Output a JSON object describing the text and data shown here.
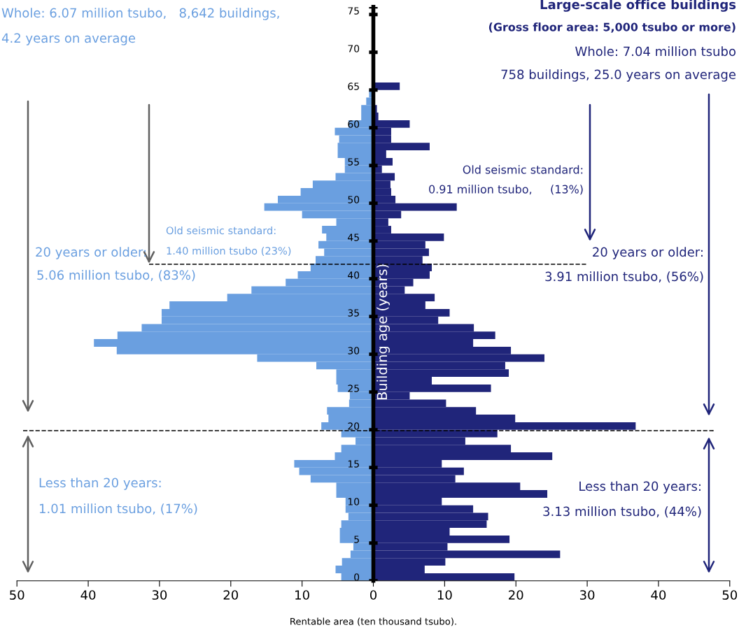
{
  "chart_data": {
    "type": "bar",
    "orientation": "horizontal",
    "stacked": true,
    "xlabel": "Rentable area (ten thousand tsubo).",
    "ylabel": "Building age (years)",
    "categories": [
      "75",
      null,
      null,
      null,
      null,
      "70",
      null,
      null,
      null,
      null,
      "65",
      null,
      null,
      null,
      null,
      "60",
      null,
      null,
      null,
      null,
      "55",
      null,
      null,
      null,
      null,
      "50",
      null,
      null,
      null,
      null,
      "45",
      null,
      null,
      null,
      null,
      "40",
      null,
      null,
      null,
      null,
      "35",
      null,
      null,
      null,
      null,
      "30",
      null,
      null,
      null,
      null,
      "25",
      null,
      null,
      null,
      null,
      "20",
      null,
      null,
      null,
      null,
      "15",
      null,
      null,
      null,
      null,
      "10",
      null,
      null,
      null,
      null,
      "5",
      null,
      null,
      null,
      null,
      "0"
    ],
    "series": [
      {
        "color": "#6a9fe0",
        "values": [
          null,
          null,
          null,
          null,
          null,
          null,
          null,
          null,
          null,
          null,
          0,
          -0.6,
          -1.0,
          -1.7,
          -1.7,
          -3.5,
          -5.4,
          -4.8,
          -5.0,
          -5.0,
          -4.0,
          -4.0,
          -5.3,
          -8.5,
          -10.2,
          -13.4,
          -15.3,
          -10.0,
          -5.2,
          -7.2,
          -6.6,
          -7.7,
          -6.9,
          -8.1,
          -8.8,
          -10.6,
          -12.3,
          -17.1,
          -20.5,
          -28.6,
          -29.7,
          -29.7,
          -32.5,
          -35.9,
          -39.2,
          -36.0,
          -16.3,
          -8.0,
          -5.2,
          -5.2,
          -5.0,
          -3.3,
          -3.4,
          -6.5,
          -6.3,
          -7.3,
          -4.5,
          -2.5,
          -4.5,
          -5.4,
          -11.1,
          -10.4,
          -8.8,
          -5.2,
          -5.2,
          -3.9,
          -3.9,
          -3.5,
          -4.5,
          -4.7,
          -4.7,
          -2.8,
          -3.2,
          -4.4,
          -5.3,
          -4.5
        ]
      },
      {
        "color": "#20257a",
        "values": [
          null,
          null,
          null,
          null,
          null,
          null,
          null,
          null,
          null,
          null,
          3.7,
          0,
          null,
          0.5,
          0.7,
          5.1,
          2.5,
          2.5,
          7.9,
          1.8,
          2.7,
          1.2,
          3.0,
          2.4,
          2.5,
          3.1,
          11.7,
          3.9,
          2.1,
          2.5,
          9.9,
          7.3,
          7.8,
          6.9,
          8.2,
          7.9,
          5.6,
          4.4,
          8.6,
          7.3,
          10.7,
          9.1,
          14.1,
          17.1,
          14.0,
          19.3,
          24.0,
          18.5,
          19.0,
          8.2,
          16.5,
          5.1,
          10.2,
          14.4,
          19.9,
          36.8,
          17.4,
          12.9,
          19.3,
          25.1,
          9.6,
          12.7,
          11.5,
          20.6,
          24.4,
          9.6,
          14.0,
          16.1,
          15.9,
          10.7,
          19.1,
          10.4,
          26.2,
          10.1,
          7.2,
          19.8
        ]
      }
    ],
    "xlim": [
      -50,
      50
    ],
    "xticks": [
      {
        "value": -50,
        "label": "50"
      },
      {
        "value": -40,
        "label": "40"
      },
      {
        "value": -30,
        "label": "30"
      },
      {
        "value": -20,
        "label": "20"
      },
      {
        "value": -10,
        "label": "10"
      },
      0,
      10,
      20,
      30,
      40,
      50
    ],
    "annotations": [
      "Whole: 6.07 million tsubo,   8,642 buildings,",
      "4.2 years on average",
      "Large-scale office buildings",
      "(Gross floor area: 5,000 tsubo or more)",
      "Whole: 7.04 million tsubo",
      "758 buildings, 25.0 years on average",
      "Old seismic standard:",
      "1.40 million tsubo (23%)",
      "20 years or older:",
      "5.06 million tsubo, (83%)",
      "Less than 20 years:",
      "1.01 million tsubo, (17%)",
      "Old seismic standard:",
      "0.91 million tsubo,     (13%)",
      "20 years or older:",
      "3.91 million tsubo, (56%)",
      "Less than 20 years:",
      "3.13 million tsubo, (44%)"
    ]
  }
}
